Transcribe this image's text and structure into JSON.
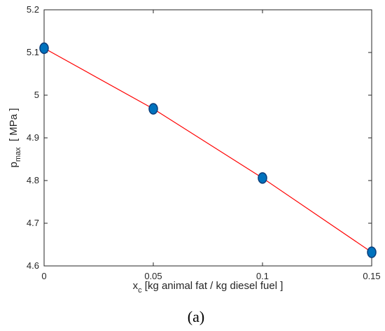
{
  "chart_data": {
    "type": "line",
    "x": [
      0,
      0.05,
      0.1,
      0.15
    ],
    "series": [
      {
        "values": [
          5.11,
          4.968,
          4.806,
          4.632
        ]
      }
    ],
    "xlabel": {
      "main": "x",
      "sub": "c",
      "rest": " [kg animal fat / kg diesel fuel ]"
    },
    "ylabel": {
      "main": "p",
      "sub": "max",
      "rest": "  [ MPa ]"
    },
    "xlim": [
      0,
      0.15
    ],
    "ylim": [
      4.6,
      5.2
    ],
    "xticks": [
      "0",
      "0.05",
      "0.1",
      "0.15"
    ],
    "yticks": [
      "4.6",
      "4.7",
      "4.8",
      "4.9",
      "5",
      "5.1",
      "5.2"
    ],
    "grid": false,
    "line_color": "#ff0000",
    "marker_color": "#0072bd",
    "marker_edge_color": "#0a3d7a",
    "panel_label": "(a)"
  }
}
